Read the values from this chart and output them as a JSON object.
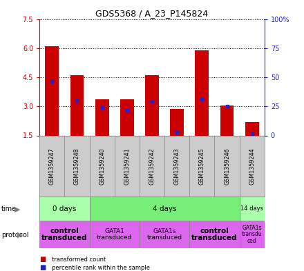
{
  "title": "GDS5368 / A_23_P145824",
  "samples": [
    "GSM1359247",
    "GSM1359248",
    "GSM1359240",
    "GSM1359241",
    "GSM1359242",
    "GSM1359243",
    "GSM1359245",
    "GSM1359246",
    "GSM1359244"
  ],
  "bar_bottoms": [
    1.5,
    1.5,
    1.5,
    1.5,
    1.5,
    1.5,
    1.5,
    1.5,
    1.5
  ],
  "bar_tops": [
    6.1,
    4.6,
    3.35,
    3.35,
    4.6,
    2.85,
    5.9,
    3.05,
    2.2
  ],
  "blue_positions": [
    4.3,
    3.3,
    2.95,
    2.8,
    3.25,
    1.65,
    3.35,
    3.0,
    1.6
  ],
  "ylim_left": [
    1.5,
    7.5
  ],
  "yticks_left": [
    1.5,
    3.0,
    4.5,
    6.0,
    7.5
  ],
  "ylim_right": [
    0,
    100
  ],
  "yticks_right": [
    0,
    25,
    50,
    75,
    100
  ],
  "ytick_labels_right": [
    "0",
    "25",
    "50",
    "75",
    "100%"
  ],
  "bar_color": "#cc0000",
  "blue_color": "#2222cc",
  "time_groups": [
    {
      "label": "0 days",
      "start": 0,
      "end": 2,
      "color": "#aaffaa"
    },
    {
      "label": "4 days",
      "start": 2,
      "end": 8,
      "color": "#77ee77"
    },
    {
      "label": "14 days",
      "start": 8,
      "end": 9,
      "color": "#aaffaa"
    }
  ],
  "protocol_groups": [
    {
      "label": "control\ntransduced",
      "start": 0,
      "end": 2,
      "bold": true
    },
    {
      "label": "GATA1\ntransduced",
      "start": 2,
      "end": 4,
      "bold": false
    },
    {
      "label": "GATA1s\ntransduced",
      "start": 4,
      "end": 6,
      "bold": false
    },
    {
      "label": "control\ntransduced",
      "start": 6,
      "end": 8,
      "bold": true
    },
    {
      "label": "GATA1s\ntransdu\nced",
      "start": 8,
      "end": 9,
      "bold": false
    }
  ],
  "protocol_color": "#dd66ee",
  "axis_left_color": "#cc0000",
  "axis_right_color": "#2222cc",
  "bar_width": 0.55,
  "background_color": "#ffffff",
  "label_bg": "#cccccc",
  "legend_items": [
    {
      "color": "#cc0000",
      "label": "transformed count"
    },
    {
      "color": "#2222cc",
      "label": "percentile rank within the sample"
    }
  ]
}
